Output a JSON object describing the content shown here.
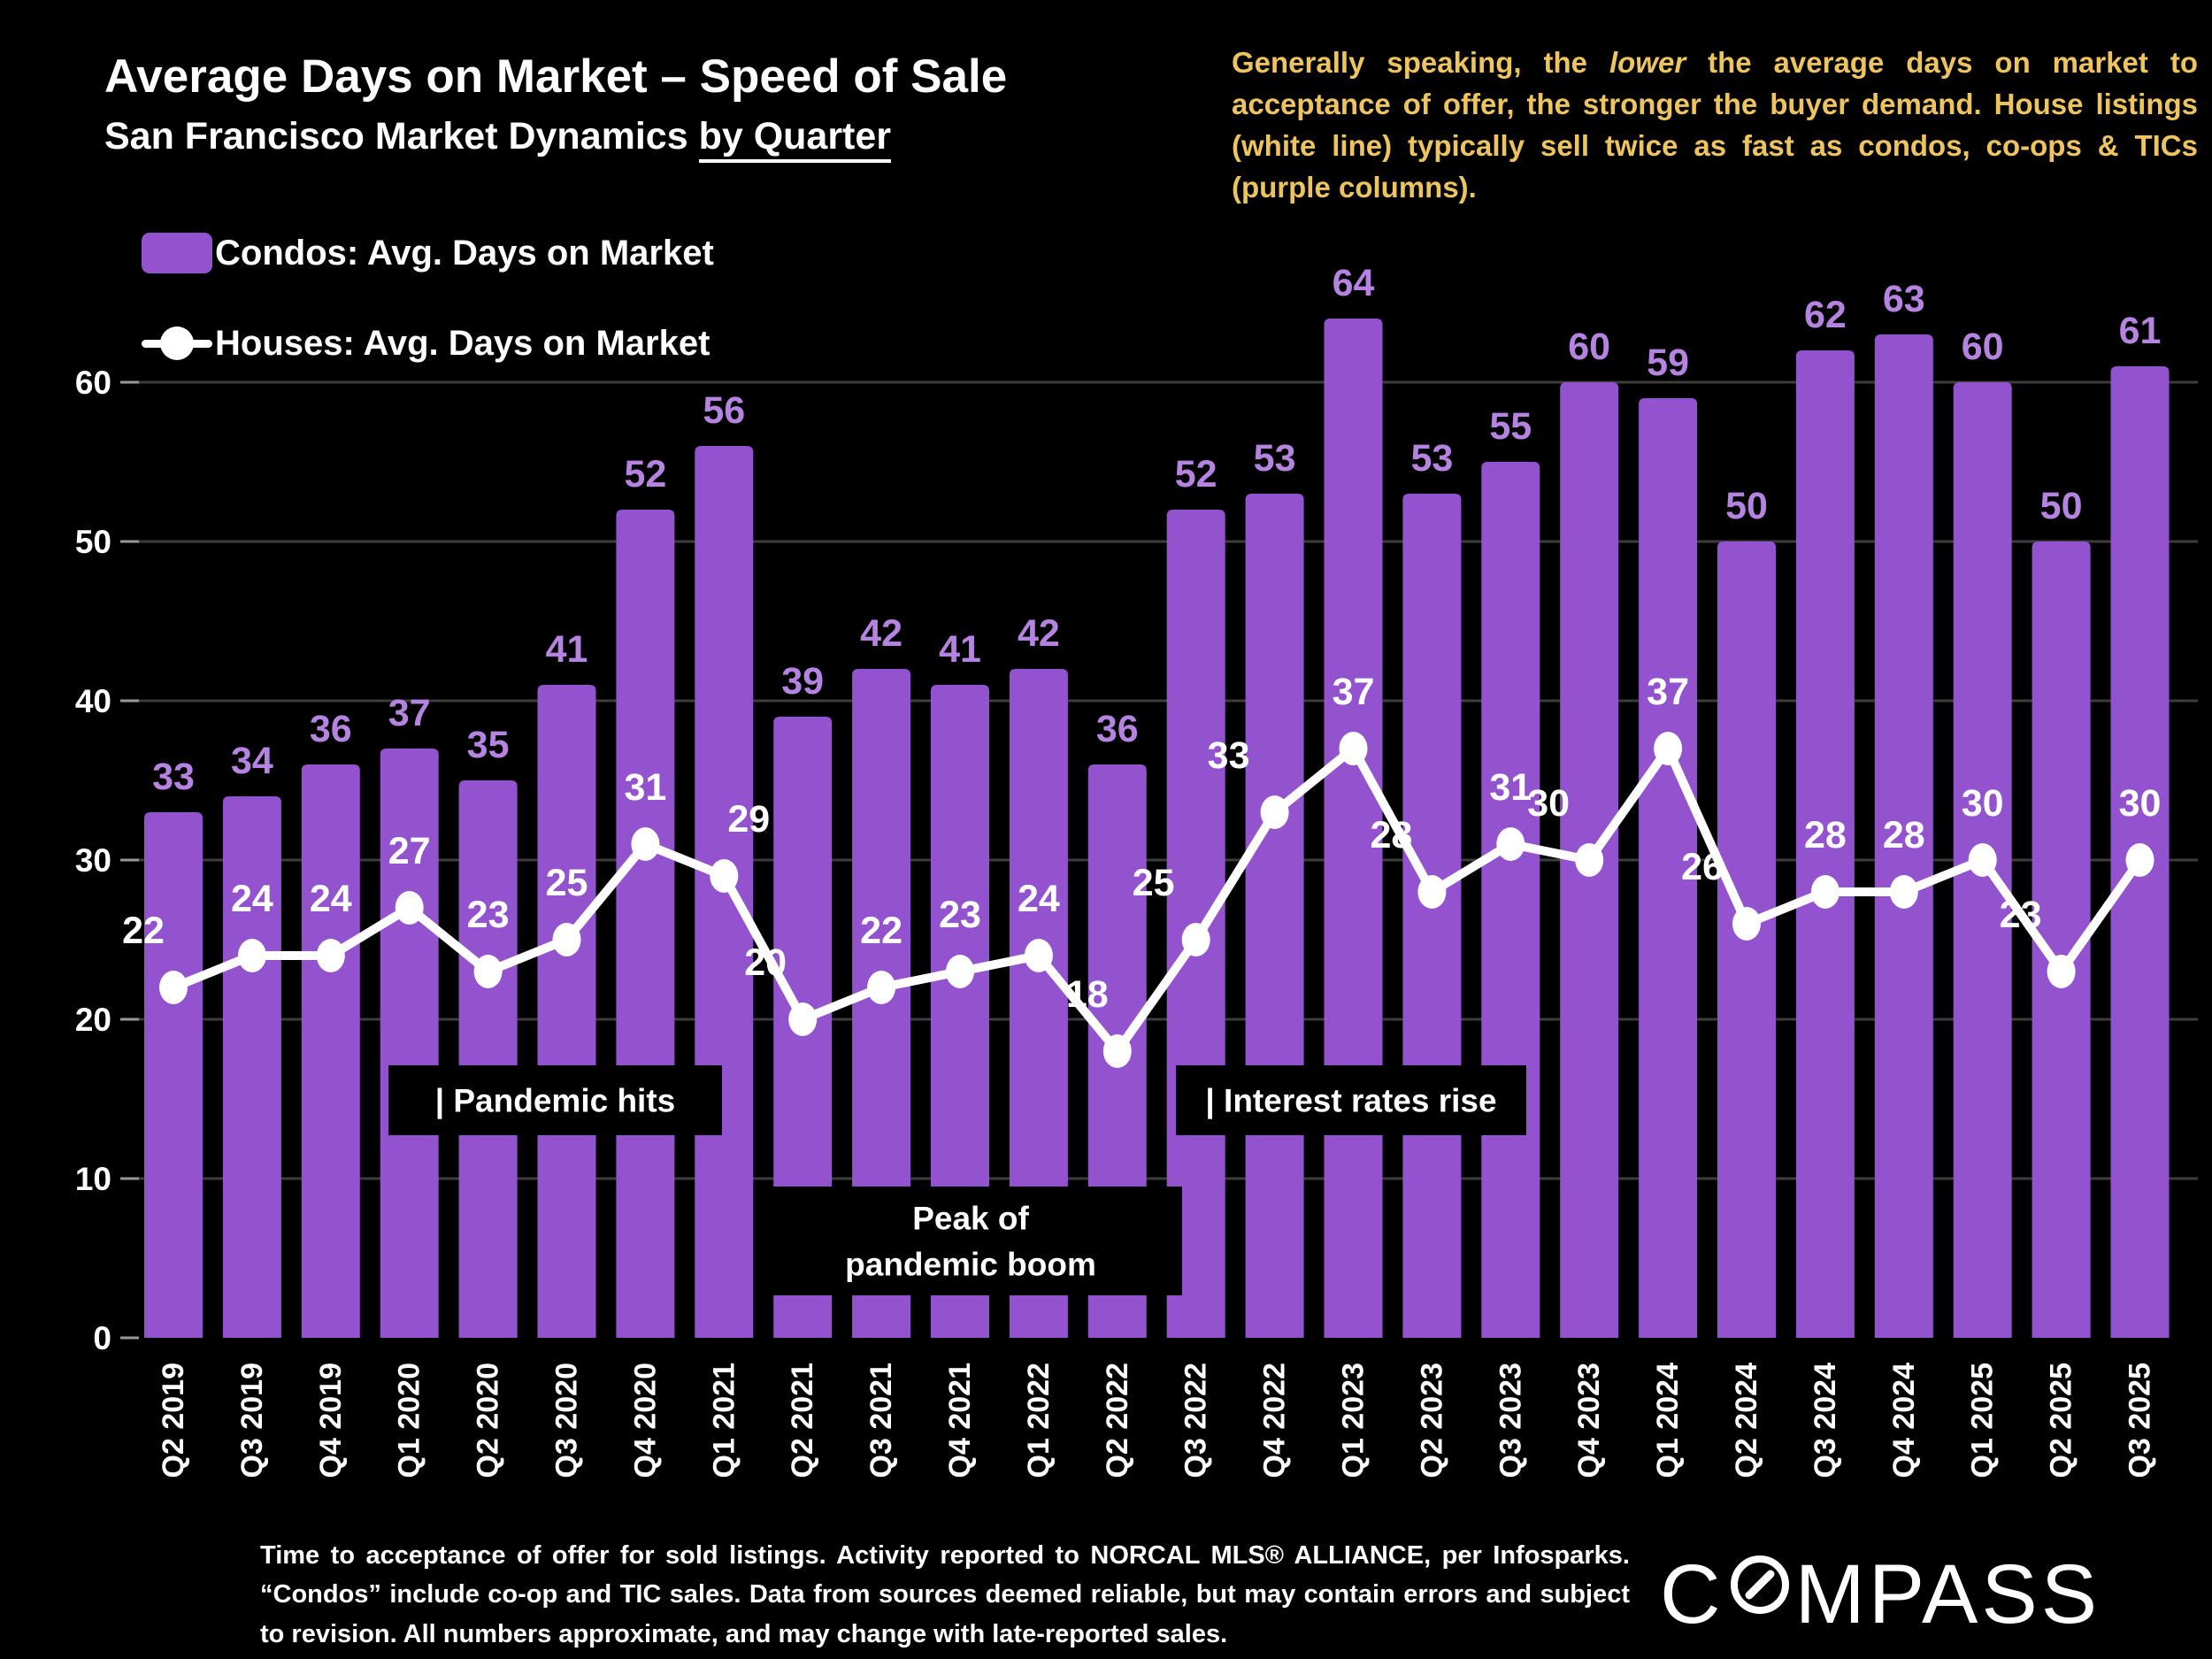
{
  "slide": {
    "title": "Average Days on Market – Speed of Sale",
    "subtitle": {
      "plain": "San Francisco Market Dynamics ",
      "underlined": "by Quarter"
    },
    "note": {
      "part1": "Generally speaking, the ",
      "italic": "lower",
      "part2": " the average days on market to acceptance of offer, the stronger the buyer demand.  House listings (white line) typically sell twice as fast as condos, co-ops & TICs (purple columns)."
    }
  },
  "legend": {
    "condos_label": "Condos: Avg. Days on Market",
    "houses_label": "Houses: Avg. Days on Market"
  },
  "chart_data": {
    "type": "bar",
    "title": "Average Days on Market – Speed of Sale",
    "xlabel": "",
    "ylabel": "",
    "ylim": [
      0,
      66
    ],
    "yticks": [
      0,
      10,
      20,
      30,
      40,
      50,
      60
    ],
    "grid": "horizontal",
    "legend_position": "top-left",
    "categories": [
      "Q2 2019",
      "Q3 2019",
      "Q4 2019",
      "Q1 2020",
      "Q2 2020",
      "Q3 2020",
      "Q4 2020",
      "Q1 2021",
      "Q2 2021",
      "Q3 2021",
      "Q4 2021",
      "Q1 2022",
      "Q2 2022",
      "Q3 2022",
      "Q4 2022",
      "Q1 2023",
      "Q2 2023",
      "Q3 2023",
      "Q4 2023",
      "Q1 2024",
      "Q2 2024",
      "Q3 2024",
      "Q4 2024",
      "Q1 2025",
      "Q2 2025",
      "Q3 2025"
    ],
    "series": [
      {
        "name": "Condos: Avg. Days on Market",
        "type": "bar",
        "color": "#9453ce",
        "values": [
          33,
          34,
          36,
          37,
          35,
          41,
          52,
          56,
          39,
          42,
          41,
          42,
          36,
          52,
          53,
          64,
          53,
          55,
          60,
          59,
          50,
          62,
          63,
          60,
          50,
          61
        ]
      },
      {
        "name": "Houses: Avg. Days on Market",
        "type": "line",
        "color": "#ffffff",
        "values": [
          22,
          24,
          24,
          27,
          23,
          25,
          31,
          29,
          20,
          22,
          23,
          24,
          18,
          25,
          33,
          37,
          28,
          31,
          30,
          37,
          26,
          28,
          28,
          30,
          23,
          30
        ]
      }
    ],
    "annotations": [
      {
        "id": "pandemic-hits",
        "lines": [
          "| Pandemic hits"
        ]
      },
      {
        "id": "peak-of-pandemic-boom",
        "lines": [
          "Peak of",
          "pandemic boom"
        ]
      },
      {
        "id": "interest-rates-rise",
        "lines": [
          "| Interest rates rise"
        ]
      }
    ]
  },
  "colors": {
    "background": "#000000",
    "bar": "#9453ce",
    "bar_value_label": "#b584e0",
    "line": "#ffffff",
    "gold_text": "#edc45e",
    "gridline": "#3d3d3d",
    "tick": "#999999",
    "annotation_box": "#000000"
  },
  "footer": {
    "disclaimer": "Time to acceptance of offer for sold listings. Activity reported to NORCAL MLS® ALLIANCE, per Infosparks. “Condos” include co-op and TIC sales. Data from sources deemed reliable, but may contain errors and subject to revision. All numbers approximate, and may change with late-reported sales.",
    "brand": "COMPASS"
  }
}
